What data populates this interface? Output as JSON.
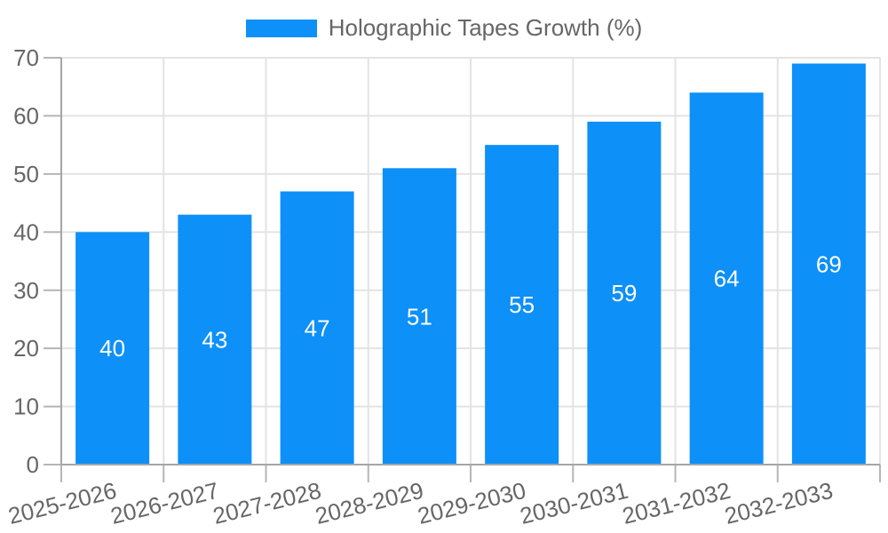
{
  "chart_data": {
    "type": "bar",
    "title": "Holographic Tapes Growth (%)",
    "legend": {
      "position": "top",
      "label": "Holographic Tapes Growth (%)"
    },
    "categories": [
      "2025-2026",
      "2026-2027",
      "2027-2028",
      "2028-2029",
      "2029-2030",
      "2030-2031",
      "2031-2032",
      "2032-2033"
    ],
    "values": [
      40,
      43,
      47,
      51,
      55,
      59,
      64,
      69
    ],
    "xlabel": "",
    "ylabel": "",
    "ylim": [
      0,
      70
    ],
    "yticks": [
      0,
      10,
      20,
      30,
      40,
      50,
      60,
      70
    ],
    "grid": true,
    "x_label_rotation_deg": -14,
    "colors": {
      "bar": "#0D90F8",
      "value_label": "#FFFFFF",
      "tick_label": "#666666",
      "legend_label": "#666666",
      "grid": "#E3E3E3",
      "axis_border": "#A5A5A5",
      "tick_mark": "#B5B5B5",
      "background": "#FFFFFF"
    }
  }
}
